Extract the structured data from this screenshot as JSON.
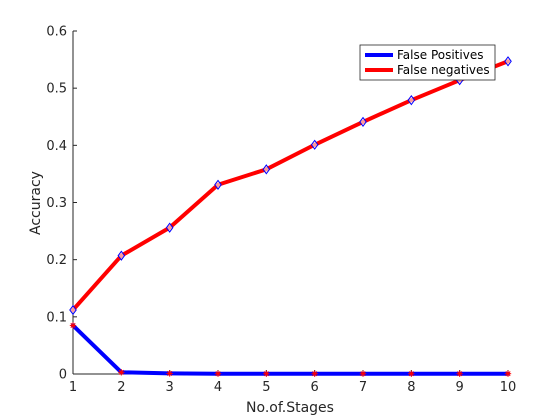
{
  "chart_data": {
    "type": "line",
    "title": "",
    "xlabel": "No.of.Stages",
    "ylabel": "Accuracy",
    "x": [
      1,
      2,
      3,
      4,
      5,
      6,
      7,
      8,
      9,
      10
    ],
    "xlim": [
      1,
      10
    ],
    "ylim": [
      0,
      0.6
    ],
    "xticks": [
      "1",
      "2",
      "3",
      "4",
      "5",
      "6",
      "7",
      "8",
      "9",
      "10"
    ],
    "yticks": [
      "0",
      "0.1",
      "0.2",
      "0.3",
      "0.4",
      "0.5",
      "0.6"
    ],
    "grid": false,
    "legend_position": "top-right",
    "series": [
      {
        "name": "False Positives",
        "color": "#0000ff",
        "marker": "asterisk",
        "marker_color": "#ff0000",
        "values": [
          0.085,
          0.003,
          0.001,
          0.0005,
          0.0005,
          0.0005,
          0.0005,
          0.0005,
          0.0005,
          0.0005
        ]
      },
      {
        "name": "False negatives",
        "color": "#ff0000",
        "marker": "diamond",
        "marker_color": "#0000ff",
        "values": [
          0.112,
          0.207,
          0.256,
          0.331,
          0.358,
          0.401,
          0.441,
          0.479,
          0.514,
          0.547
        ]
      }
    ]
  }
}
